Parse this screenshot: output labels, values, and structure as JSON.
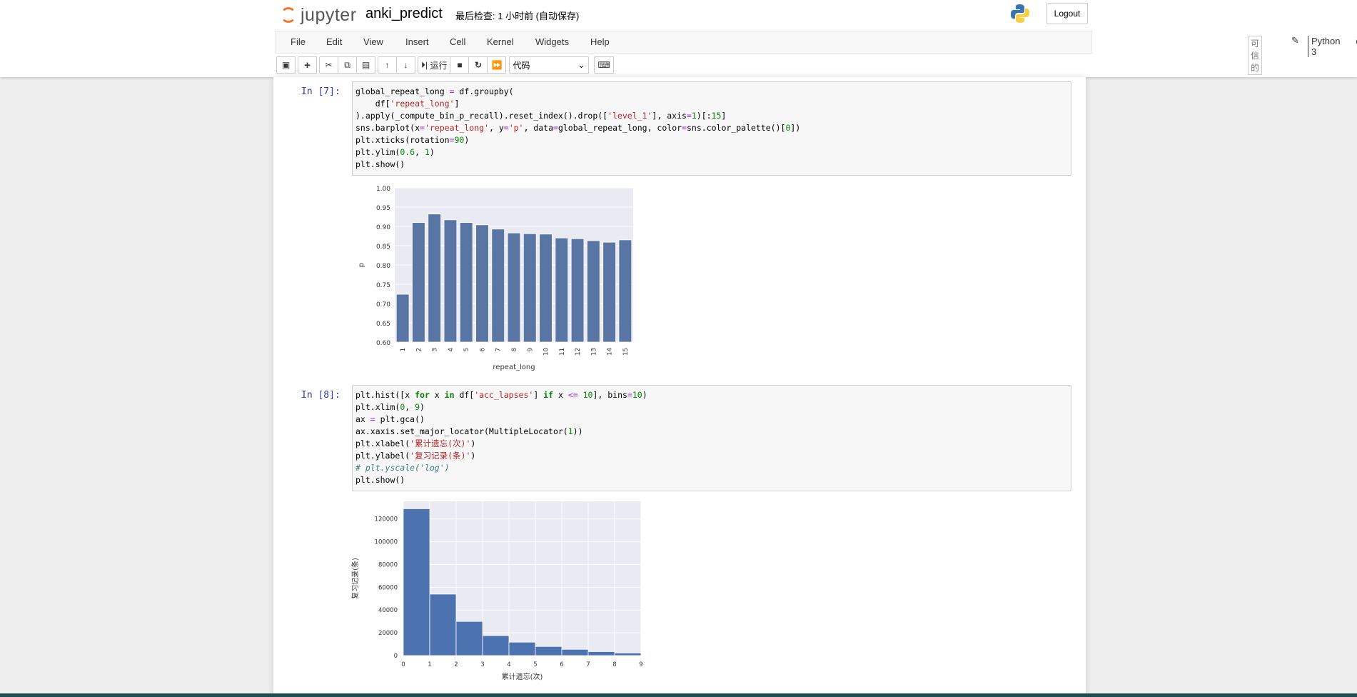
{
  "header": {
    "logo_text": "jupyter",
    "notebook_name": "anki_predict",
    "checkpoint": "最后检查: 1 小时前  (自动保存)",
    "logout_label": "Logout"
  },
  "menu": {
    "items": [
      "File",
      "Edit",
      "View",
      "Insert",
      "Cell",
      "Kernel",
      "Widgets",
      "Help"
    ],
    "trusted": "可信的",
    "kernel_name": "Python 3"
  },
  "toolbar": {
    "run_label": "运行",
    "cell_type": "代码"
  },
  "cells": [
    {
      "prompt": "In  [7]:",
      "code": [
        [
          [
            "global_repeat_long ",
            ""
          ],
          [
            "=",
            "o"
          ],
          [
            " df.groupby(",
            ""
          ]
        ],
        [
          [
            "    df[",
            ""
          ],
          [
            "'repeat_long'",
            "s"
          ],
          [
            "]",
            ""
          ]
        ],
        [
          [
            ").apply(_compute_bin_p_recall).reset_index().drop([",
            ""
          ],
          [
            "'level_1'",
            "s"
          ],
          [
            "], axis",
            ""
          ],
          [
            "=",
            "o"
          ],
          [
            "1",
            "n"
          ],
          [
            ")[:",
            ""
          ],
          [
            "15",
            "n"
          ],
          [
            "]",
            ""
          ]
        ],
        [
          [
            "sns.barplot(x",
            ""
          ],
          [
            "=",
            "o"
          ],
          [
            "'repeat_long'",
            "s"
          ],
          [
            ", y",
            ""
          ],
          [
            "=",
            "o"
          ],
          [
            "'p'",
            "s"
          ],
          [
            ", data",
            ""
          ],
          [
            "=",
            "o"
          ],
          [
            "global_repeat_long, color",
            ""
          ],
          [
            "=",
            "o"
          ],
          [
            "sns.color_palette()[",
            ""
          ],
          [
            "0",
            "n"
          ],
          [
            "])",
            ""
          ]
        ],
        [
          [
            "plt.xticks(rotation",
            ""
          ],
          [
            "=",
            "o"
          ],
          [
            "90",
            "n"
          ],
          [
            ")",
            ""
          ]
        ],
        [
          [
            "plt.ylim(",
            ""
          ],
          [
            "0.6",
            "n"
          ],
          [
            ", ",
            ""
          ],
          [
            "1",
            "n"
          ],
          [
            ")",
            ""
          ]
        ],
        [
          [
            "plt.show()",
            ""
          ]
        ]
      ]
    },
    {
      "prompt": "In  [8]:",
      "code": [
        [
          [
            "plt.hist([x ",
            ""
          ],
          [
            "for",
            "k"
          ],
          [
            " x ",
            ""
          ],
          [
            "in",
            "k"
          ],
          [
            " df[",
            ""
          ],
          [
            "'acc_lapses'",
            "s"
          ],
          [
            "] ",
            ""
          ],
          [
            "if",
            "k"
          ],
          [
            " x ",
            ""
          ],
          [
            "<=",
            "o"
          ],
          [
            " ",
            ""
          ],
          [
            "10",
            "n"
          ],
          [
            "], bins",
            ""
          ],
          [
            "=",
            "o"
          ],
          [
            "10",
            "n"
          ],
          [
            ")",
            ""
          ]
        ],
        [
          [
            "plt.xlim(",
            ""
          ],
          [
            "0",
            "n"
          ],
          [
            ", ",
            ""
          ],
          [
            "9",
            "n"
          ],
          [
            ")",
            ""
          ]
        ],
        [
          [
            "ax ",
            ""
          ],
          [
            "=",
            "o"
          ],
          [
            " plt.gca()",
            ""
          ]
        ],
        [
          [
            "ax.xaxis.set_major_locator(MultipleLocator(",
            ""
          ],
          [
            "1",
            "n"
          ],
          [
            "))",
            ""
          ]
        ],
        [
          [
            "plt.xlabel(",
            ""
          ],
          [
            "'累计遗忘(次)'",
            "s"
          ],
          [
            ")",
            ""
          ]
        ],
        [
          [
            "plt.ylabel(",
            ""
          ],
          [
            "'复习记录(条)'",
            "s"
          ],
          [
            ")",
            ""
          ]
        ],
        [
          [
            "# plt.yscale('log')",
            "c"
          ]
        ],
        [
          [
            "plt.show()",
            ""
          ]
        ]
      ]
    }
  ],
  "chart_data": [
    {
      "type": "bar",
      "categories": [
        "1",
        "2",
        "3",
        "4",
        "5",
        "6",
        "7",
        "8",
        "9",
        "10",
        "11",
        "12",
        "13",
        "14",
        "15"
      ],
      "values": [
        0.724,
        0.91,
        0.932,
        0.917,
        0.91,
        0.904,
        0.893,
        0.883,
        0.881,
        0.88,
        0.87,
        0.868,
        0.863,
        0.859,
        0.865
      ],
      "xlabel": "repeat_long",
      "ylabel": "p",
      "ylim": [
        0.6,
        1.0
      ],
      "yticks": [
        "0.60",
        "0.65",
        "0.70",
        "0.75",
        "0.80",
        "0.85",
        "0.90",
        "0.95",
        "1.00"
      ],
      "grid": true,
      "color": "#5975a4",
      "background": "#eaeaf2"
    },
    {
      "type": "bar",
      "bin_edges": [
        0,
        1,
        2,
        3,
        4,
        5,
        6,
        7,
        8,
        9
      ],
      "values": [
        129000,
        54000,
        30000,
        17500,
        11800,
        8000,
        5500,
        3500,
        2300
      ],
      "xlabel": "累计遗忘(次)",
      "ylabel": "复习记录(条)",
      "xlim": [
        0,
        9
      ],
      "ylim": [
        0,
        135500
      ],
      "xticks": [
        "0",
        "1",
        "2",
        "3",
        "4",
        "5",
        "6",
        "7",
        "8",
        "9"
      ],
      "yticks": [
        "0",
        "20000",
        "40000",
        "60000",
        "80000",
        "100000",
        "120000"
      ],
      "grid": true,
      "color": "#4c72b0",
      "background": "#eaeaf2"
    }
  ]
}
